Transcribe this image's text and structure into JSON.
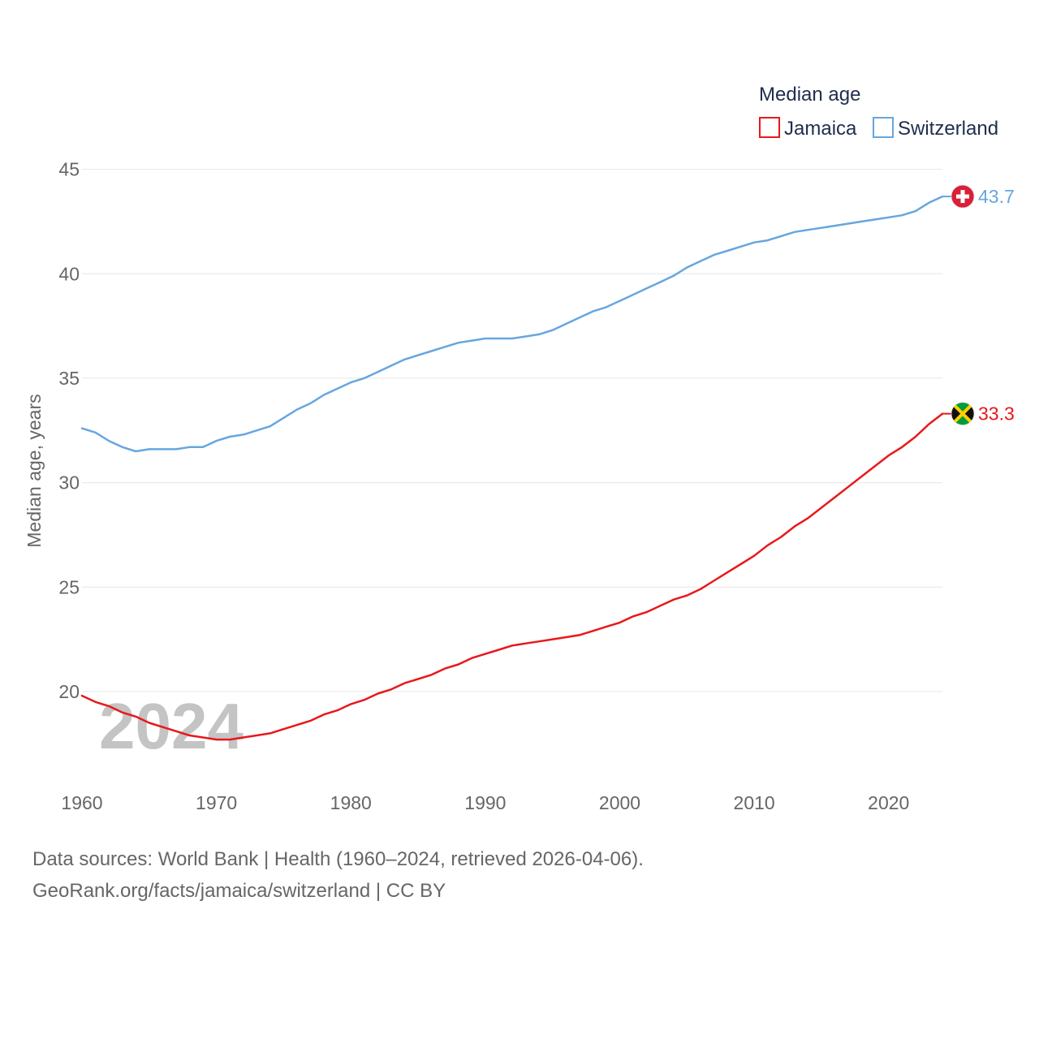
{
  "chart_data": {
    "type": "line",
    "title": "",
    "legend_title": "Median age",
    "ylabel": "Median age, years",
    "xlabel": "",
    "ylim": [
      15.8,
      46.5
    ],
    "xlim": [
      1960,
      2024
    ],
    "yticks": [
      20,
      25,
      30,
      35,
      40,
      45
    ],
    "xticks": [
      1960,
      1970,
      1980,
      1990,
      2000,
      2010,
      2020
    ],
    "year_label": "2024",
    "series": [
      {
        "name": "Jamaica",
        "color": "#e8181b",
        "end_label": "33.3",
        "flag": "jamaica-flag",
        "x": [
          1960,
          1961,
          1962,
          1963,
          1964,
          1965,
          1966,
          1967,
          1968,
          1969,
          1970,
          1971,
          1972,
          1973,
          1974,
          1975,
          1976,
          1977,
          1978,
          1979,
          1980,
          1981,
          1982,
          1983,
          1984,
          1985,
          1986,
          1987,
          1988,
          1989,
          1990,
          1991,
          1992,
          1993,
          1994,
          1995,
          1996,
          1997,
          1998,
          1999,
          2000,
          2001,
          2002,
          2003,
          2004,
          2005,
          2006,
          2007,
          2008,
          2009,
          2010,
          2011,
          2012,
          2013,
          2014,
          2015,
          2016,
          2017,
          2018,
          2019,
          2020,
          2021,
          2022,
          2023,
          2024
        ],
        "values": [
          19.8,
          19.5,
          19.3,
          19.0,
          18.8,
          18.5,
          18.3,
          18.1,
          17.9,
          17.8,
          17.7,
          17.7,
          17.8,
          17.9,
          18.0,
          18.2,
          18.4,
          18.6,
          18.9,
          19.1,
          19.4,
          19.6,
          19.9,
          20.1,
          20.4,
          20.6,
          20.8,
          21.1,
          21.3,
          21.6,
          21.8,
          22.0,
          22.2,
          22.3,
          22.4,
          22.5,
          22.6,
          22.7,
          22.9,
          23.1,
          23.3,
          23.6,
          23.8,
          24.1,
          24.4,
          24.6,
          24.9,
          25.3,
          25.7,
          26.1,
          26.5,
          27.0,
          27.4,
          27.9,
          28.3,
          28.8,
          29.3,
          29.8,
          30.3,
          30.8,
          31.3,
          31.7,
          32.2,
          32.8,
          33.3
        ]
      },
      {
        "name": "Switzerland",
        "color": "#66a6e0",
        "end_label": "43.7",
        "flag": "switzerland-flag",
        "x": [
          1960,
          1961,
          1962,
          1963,
          1964,
          1965,
          1966,
          1967,
          1968,
          1969,
          1970,
          1971,
          1972,
          1973,
          1974,
          1975,
          1976,
          1977,
          1978,
          1979,
          1980,
          1981,
          1982,
          1983,
          1984,
          1985,
          1986,
          1987,
          1988,
          1989,
          1990,
          1991,
          1992,
          1993,
          1994,
          1995,
          1996,
          1997,
          1998,
          1999,
          2000,
          2001,
          2002,
          2003,
          2004,
          2005,
          2006,
          2007,
          2008,
          2009,
          2010,
          2011,
          2012,
          2013,
          2014,
          2015,
          2016,
          2017,
          2018,
          2019,
          2020,
          2021,
          2022,
          2023,
          2024
        ],
        "values": [
          32.6,
          32.4,
          32.0,
          31.7,
          31.5,
          31.6,
          31.6,
          31.6,
          31.7,
          31.7,
          32.0,
          32.2,
          32.3,
          32.5,
          32.7,
          33.1,
          33.5,
          33.8,
          34.2,
          34.5,
          34.8,
          35.0,
          35.3,
          35.6,
          35.9,
          36.1,
          36.3,
          36.5,
          36.7,
          36.8,
          36.9,
          36.9,
          36.9,
          37.0,
          37.1,
          37.3,
          37.6,
          37.9,
          38.2,
          38.4,
          38.7,
          39.0,
          39.3,
          39.6,
          39.9,
          40.3,
          40.6,
          40.9,
          41.1,
          41.3,
          41.5,
          41.6,
          41.8,
          42.0,
          42.1,
          42.2,
          42.3,
          42.4,
          42.5,
          42.6,
          42.7,
          42.8,
          43.0,
          43.4,
          43.7
        ]
      }
    ]
  },
  "footer": {
    "line1": "Data sources: World Bank | Health (1960–2024, retrieved 2026-04-06).",
    "line2": "GeoRank.org/facts/jamaica/switzerland | CC BY"
  }
}
